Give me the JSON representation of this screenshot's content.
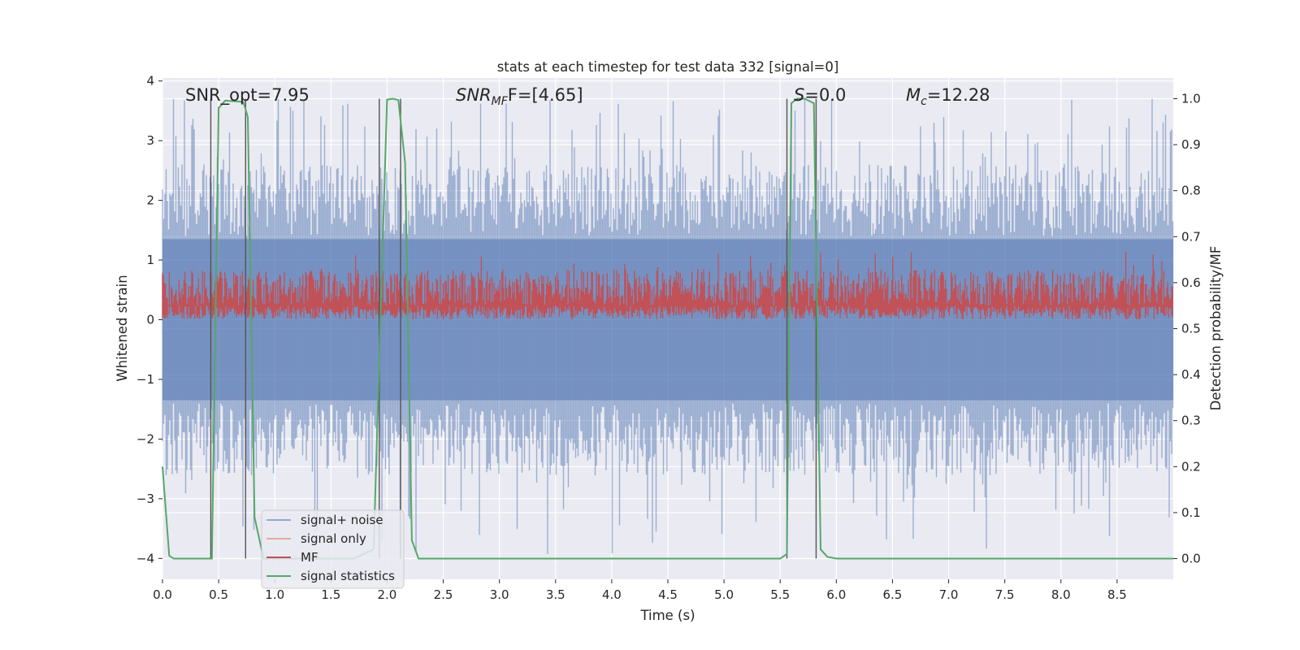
{
  "chart_data": {
    "type": "line",
    "title": "stats at each timestep for test data 332 [signal=0]",
    "xlabel": "Time (s)",
    "ylabel": "Whitened strain",
    "y2label": "Detection probability/MF",
    "xlim": [
      0.0,
      9.0
    ],
    "ylim": [
      -4.35,
      4.05
    ],
    "y2lim": [
      -0.045,
      1.045
    ],
    "x_ticks": [
      0.0,
      0.5,
      1.0,
      1.5,
      2.0,
      2.5,
      3.0,
      3.5,
      4.0,
      4.5,
      5.0,
      5.5,
      6.0,
      6.5,
      7.0,
      7.5,
      8.0,
      8.5
    ],
    "x_tick_labels": [
      "0.0",
      "0.5",
      "1.0",
      "1.5",
      "2.0",
      "2.5",
      "3.0",
      "3.5",
      "4.0",
      "4.5",
      "5.0",
      "5.5",
      "6.0",
      "6.5",
      "7.0",
      "7.5",
      "8.0",
      "8.5"
    ],
    "y_ticks": [
      4,
      3,
      2,
      1,
      0,
      -1,
      -2,
      -3,
      -4
    ],
    "y_tick_labels": [
      "4",
      "3",
      "2",
      "1",
      "0",
      "−1",
      "−2",
      "−3",
      "−4"
    ],
    "y2_ticks": [
      1.0,
      0.9,
      0.8,
      0.7,
      0.6,
      0.5,
      0.4,
      0.3,
      0.2,
      0.1,
      0.0
    ],
    "y2_tick_labels": [
      "1.0",
      "0.9",
      "0.8",
      "0.7",
      "0.6",
      "0.5",
      "0.4",
      "0.3",
      "0.2",
      "0.1",
      "0.0"
    ],
    "grid": true,
    "legend_position": "bottom-left",
    "annotations": {
      "snr_opt": "SNR_opt=7.95",
      "snr_mf_main": "SNR",
      "snr_mf_sub": "MF",
      "snr_mf_rest": "F=[4.65]",
      "s_main": "S",
      "s_rest": "=0.0",
      "mc_main": "M",
      "mc_sub": "c",
      "mc_rest": "=12.28"
    },
    "series": [
      {
        "name": "signal+ noise",
        "color": "#4c72b0",
        "style": "noise band",
        "x_range": [
          0.0,
          9.0
        ],
        "y_range": [
          -4.0,
          3.7
        ]
      },
      {
        "name": "signal only",
        "color": "#dd8452",
        "style": "line",
        "x": [],
        "y": []
      },
      {
        "name": "MF",
        "color": "#c44e52",
        "style": "noise band",
        "axis": "y2",
        "x_range": [
          0.0,
          9.0
        ],
        "y2_range": [
          0.52,
          0.63
        ]
      },
      {
        "name": "signal statistics",
        "color": "#55a868",
        "axis": "y2",
        "x": [
          0.0,
          0.06,
          0.1,
          0.2,
          0.3,
          0.38,
          0.44,
          0.5,
          0.56,
          0.6,
          0.72,
          0.76,
          0.82,
          0.9,
          1.0,
          1.2,
          1.5,
          1.7,
          1.88,
          1.95,
          2.0,
          2.05,
          2.1,
          2.16,
          2.22,
          2.28,
          2.35,
          2.5,
          3.0,
          4.0,
          5.0,
          5.5,
          5.56,
          5.6,
          5.65,
          5.72,
          5.8,
          5.86,
          5.92,
          6.0,
          7.0,
          8.0,
          9.0
        ],
        "y": [
          0.2,
          0.006,
          0.0,
          0.0,
          0.0,
          0.0,
          0.0,
          0.98,
          0.996,
          0.995,
          0.993,
          0.96,
          0.09,
          0.0,
          0.0,
          0.0,
          0.0,
          0.0,
          0.02,
          0.6,
          0.998,
          1.0,
          0.997,
          0.86,
          0.04,
          0.0,
          0.0,
          0.0,
          0.0,
          0.0,
          0.0,
          0.0,
          0.01,
          0.99,
          1.0,
          1.0,
          0.99,
          0.02,
          0.004,
          0.0,
          0.0,
          0.0,
          0.0
        ]
      }
    ],
    "vertical_lines_x": [
      0.43,
      0.74,
      1.93,
      2.12,
      5.56,
      5.82
    ]
  }
}
